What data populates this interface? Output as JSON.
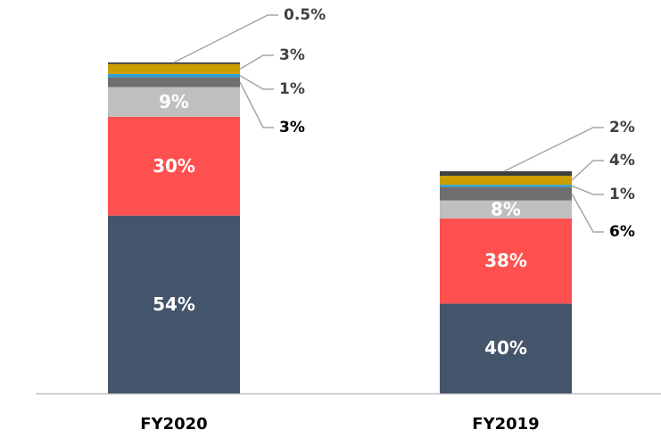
{
  "chart_data": {
    "type": "stacked_bar",
    "categories": [
      "FY2020",
      "FY2019"
    ],
    "series": [
      {
        "color": "#44546a",
        "values": [
          54,
          40
        ],
        "value_labels": [
          "54%",
          "40%"
        ]
      },
      {
        "color": "#ff5050",
        "values": [
          30,
          38
        ],
        "value_labels": [
          "30%",
          "38%"
        ]
      },
      {
        "color": "#bfbfbf",
        "values": [
          9,
          8
        ],
        "value_labels": [
          "9%",
          "8%"
        ]
      },
      {
        "color": "#6f6f6f",
        "values": [
          3,
          6
        ],
        "value_labels": [
          "3%",
          "6%"
        ]
      },
      {
        "color": "#2e9fd0",
        "values": [
          1,
          1
        ],
        "value_labels": [
          "1%",
          "1%"
        ]
      },
      {
        "color": "#cc9e00",
        "values": [
          3,
          4
        ],
        "value_labels": [
          "3%",
          "4%"
        ]
      },
      {
        "color": "#404040",
        "values": [
          0.5,
          2
        ],
        "value_labels": [
          "0.5%",
          "2%"
        ]
      }
    ]
  }
}
